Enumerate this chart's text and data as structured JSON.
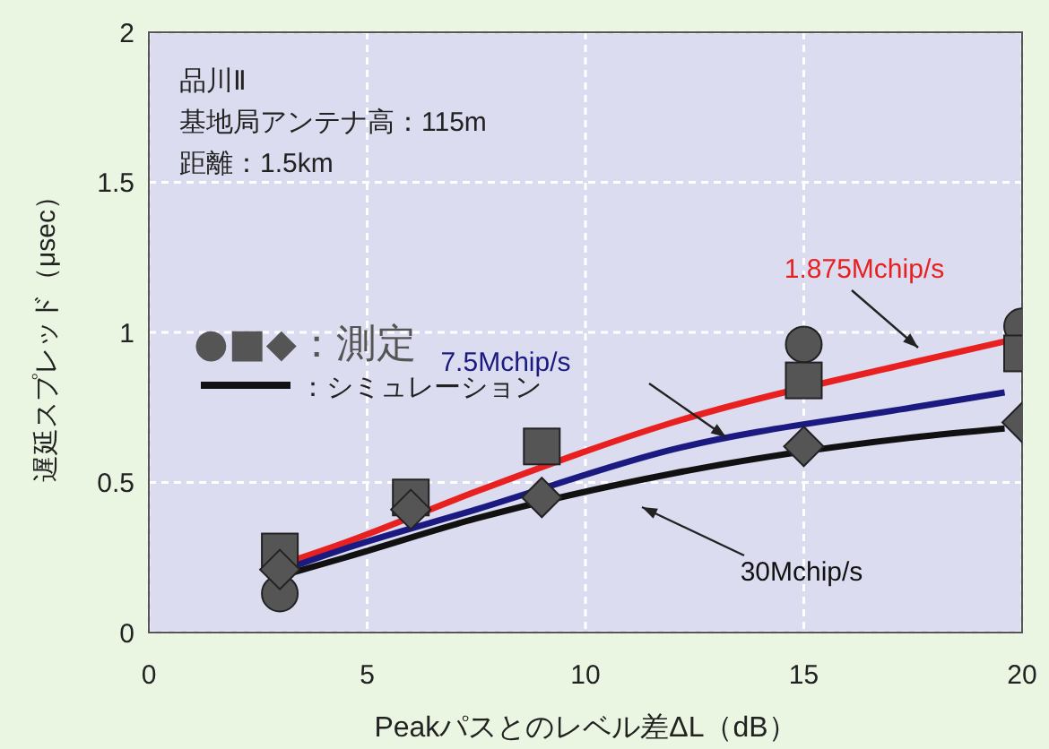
{
  "chart_data": {
    "type": "line",
    "xlabel": "Peakパスとのレベル差ΔL（dB）",
    "ylabel": "遅延スプレッド（μsec）",
    "xlim": [
      0,
      20
    ],
    "xticks": [
      0,
      5,
      10,
      15,
      20
    ],
    "ylim": [
      0,
      2
    ],
    "yticks": [
      0,
      0.5,
      1,
      1.5,
      2
    ],
    "grid": true,
    "annotations": [
      "品川Ⅱ",
      "基地局アンテナ高：115m",
      "距離：1.5km",
      "●■◆：測定",
      "：シミュレーション"
    ],
    "series": [
      {
        "name": "1.875Mchip/s",
        "type": "line",
        "color": "#e82020",
        "marker": "none",
        "x": [
          3.3,
          4.5,
          7.5,
          12,
          17.5,
          19.6
        ],
        "values": [
          0.24,
          0.3,
          0.47,
          0.7,
          0.9,
          0.97
        ]
      },
      {
        "name": "7.5Mchip/s",
        "type": "line",
        "color": "#1a1a80",
        "marker": "none",
        "x": [
          3.3,
          4.5,
          7.5,
          12,
          17.5,
          19.6
        ],
        "values": [
          0.22,
          0.28,
          0.41,
          0.61,
          0.75,
          0.8
        ]
      },
      {
        "name": "30Mchip/s",
        "type": "line",
        "color": "#111111",
        "marker": "none",
        "x": [
          3.3,
          4.5,
          7.5,
          12,
          17.5,
          19.6
        ],
        "values": [
          0.2,
          0.25,
          0.38,
          0.53,
          0.65,
          0.68
        ]
      },
      {
        "type": "scatter",
        "color": "#555555",
        "marker": "circle",
        "x": [
          3,
          15,
          20
        ],
        "values": [
          0.13,
          0.96,
          1.02
        ]
      },
      {
        "type": "scatter",
        "color": "#555555",
        "marker": "square",
        "x": [
          3,
          6,
          9,
          15,
          20
        ],
        "values": [
          0.27,
          0.45,
          0.62,
          0.84,
          0.93
        ]
      },
      {
        "type": "scatter",
        "color": "#555555",
        "marker": "diamond",
        "x": [
          3,
          6,
          9,
          15,
          20
        ],
        "values": [
          0.21,
          0.41,
          0.45,
          0.62,
          0.7
        ]
      }
    ]
  }
}
